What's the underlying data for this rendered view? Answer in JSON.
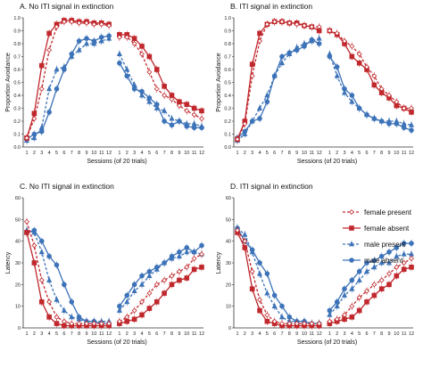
{
  "colors": {
    "female": "#c0282d",
    "male": "#3d73b8",
    "axis": "#333333"
  },
  "legend": [
    {
      "label": "female present",
      "color": "#c0282d",
      "marker": "diamond",
      "dash": true
    },
    {
      "label": "female absent",
      "color": "#c0282d",
      "marker": "square",
      "dash": false
    },
    {
      "label": "male present",
      "color": "#3d73b8",
      "marker": "triangle",
      "dash": true
    },
    {
      "label": "male absent",
      "color": "#3d73b8",
      "marker": "circle",
      "dash": false
    }
  ],
  "chart_data": [
    {
      "type": "line",
      "title": "A. No ITI signal in extinction",
      "xlabel": "Sessions (of 20 trials)",
      "ylabel": "Proportion Avoidance",
      "ylim": [
        0,
        1
      ],
      "yticks": [
        0,
        0.1,
        0.2,
        0.3,
        0.4,
        0.5,
        0.6,
        0.7,
        0.8,
        0.9,
        1
      ],
      "x_training": [
        1,
        2,
        3,
        4,
        5,
        6,
        7,
        8,
        9,
        10,
        11,
        12
      ],
      "x_extinction": [
        1,
        2,
        3,
        4,
        5,
        6,
        7,
        8,
        9,
        10,
        11,
        12
      ],
      "series": [
        {
          "name": "female present",
          "training": [
            0.07,
            0.22,
            0.45,
            0.75,
            0.93,
            0.97,
            0.97,
            0.96,
            0.96,
            0.95,
            0.95,
            0.94
          ],
          "extinction": [
            0.85,
            0.85,
            0.8,
            0.72,
            0.58,
            0.45,
            0.4,
            0.37,
            0.32,
            0.28,
            0.25,
            0.22
          ]
        },
        {
          "name": "female absent",
          "training": [
            0.07,
            0.26,
            0.63,
            0.88,
            0.95,
            0.98,
            0.98,
            0.97,
            0.97,
            0.96,
            0.96,
            0.95
          ],
          "extinction": [
            0.87,
            0.87,
            0.84,
            0.78,
            0.7,
            0.6,
            0.47,
            0.4,
            0.35,
            0.33,
            0.3,
            0.28
          ]
        },
        {
          "name": "male present",
          "training": [
            0.05,
            0.07,
            0.15,
            0.45,
            0.6,
            0.62,
            0.7,
            0.75,
            0.8,
            0.8,
            0.82,
            0.84
          ],
          "extinction": [
            0.72,
            0.6,
            0.48,
            0.4,
            0.35,
            0.3,
            0.28,
            0.22,
            0.2,
            0.18,
            0.18,
            0.16
          ]
        },
        {
          "name": "male absent",
          "training": [
            0.06,
            0.1,
            0.12,
            0.27,
            0.45,
            0.6,
            0.72,
            0.82,
            0.84,
            0.82,
            0.85,
            0.86
          ],
          "extinction": [
            0.65,
            0.55,
            0.45,
            0.43,
            0.38,
            0.33,
            0.2,
            0.17,
            0.2,
            0.16,
            0.15,
            0.15
          ]
        }
      ]
    },
    {
      "type": "line",
      "title": "B. ITI signal in extinction",
      "xlabel": "Sessions (of 20 trials)",
      "ylabel": "Proportion Avoidance",
      "ylim": [
        0,
        1
      ],
      "yticks": [
        0,
        0.1,
        0.2,
        0.3,
        0.4,
        0.5,
        0.6,
        0.7,
        0.8,
        0.9,
        1
      ],
      "x_training": [
        1,
        2,
        3,
        4,
        5,
        6,
        7,
        8,
        9,
        10,
        11,
        12
      ],
      "x_extinction": [
        1,
        2,
        3,
        4,
        5,
        6,
        7,
        8,
        9,
        10,
        11,
        12
      ],
      "series": [
        {
          "name": "female present",
          "training": [
            0.06,
            0.18,
            0.55,
            0.82,
            0.95,
            0.97,
            0.97,
            0.96,
            0.95,
            0.94,
            0.93,
            0.93
          ],
          "extinction": [
            0.9,
            0.88,
            0.82,
            0.78,
            0.72,
            0.62,
            0.55,
            0.45,
            0.4,
            0.35,
            0.3,
            0.3
          ]
        },
        {
          "name": "female absent",
          "training": [
            0.06,
            0.2,
            0.64,
            0.88,
            0.95,
            0.97,
            0.97,
            0.96,
            0.96,
            0.94,
            0.93,
            0.9
          ],
          "extinction": [
            0.9,
            0.87,
            0.8,
            0.7,
            0.65,
            0.6,
            0.48,
            0.42,
            0.38,
            0.32,
            0.3,
            0.27
          ]
        },
        {
          "name": "male present",
          "training": [
            0.05,
            0.1,
            0.2,
            0.3,
            0.4,
            0.55,
            0.65,
            0.72,
            0.77,
            0.8,
            0.82,
            0.84
          ],
          "extinction": [
            0.72,
            0.55,
            0.42,
            0.35,
            0.3,
            0.25,
            0.22,
            0.2,
            0.2,
            0.2,
            0.18,
            0.17
          ]
        },
        {
          "name": "male absent",
          "training": [
            0.07,
            0.12,
            0.2,
            0.22,
            0.35,
            0.55,
            0.7,
            0.73,
            0.75,
            0.78,
            0.83,
            0.8
          ],
          "extinction": [
            0.7,
            0.62,
            0.45,
            0.4,
            0.3,
            0.25,
            0.22,
            0.2,
            0.18,
            0.18,
            0.15,
            0.13
          ]
        }
      ]
    },
    {
      "type": "line",
      "title": "C. No ITI signal in extinction",
      "xlabel": "Sessions (of 20 trials)",
      "ylabel": "Latency",
      "ylim": [
        0,
        60
      ],
      "yticks": [
        0,
        10,
        20,
        30,
        40,
        50,
        60
      ],
      "x_training": [
        1,
        2,
        3,
        4,
        5,
        6,
        7,
        8,
        9,
        10,
        11,
        12
      ],
      "x_extinction": [
        1,
        2,
        3,
        4,
        5,
        6,
        7,
        8,
        9,
        10,
        11,
        12
      ],
      "series": [
        {
          "name": "female present",
          "training": [
            49,
            38,
            22,
            12,
            5,
            3,
            2,
            2,
            2,
            2,
            2,
            2
          ],
          "extinction": [
            3,
            5,
            8,
            12,
            16,
            20,
            22,
            24,
            26,
            28,
            32,
            34
          ]
        },
        {
          "name": "female absent",
          "training": [
            44,
            30,
            12,
            5,
            2,
            1,
            1,
            1,
            1,
            1,
            1,
            1
          ],
          "extinction": [
            2,
            3,
            4,
            6,
            9,
            12,
            16,
            20,
            22,
            23,
            27,
            28
          ]
        },
        {
          "name": "male present",
          "training": [
            45,
            44,
            35,
            22,
            13,
            8,
            5,
            4,
            3,
            3,
            3,
            3
          ],
          "extinction": [
            8,
            12,
            17,
            20,
            24,
            27,
            30,
            32,
            33,
            35,
            35,
            34
          ]
        },
        {
          "name": "male absent",
          "training": [
            44,
            45,
            40,
            33,
            29,
            20,
            12,
            5,
            3,
            3,
            2,
            2
          ],
          "extinction": [
            10,
            15,
            20,
            24,
            26,
            28,
            30,
            33,
            35,
            37,
            35,
            38
          ]
        }
      ]
    },
    {
      "type": "line",
      "title": "D. ITI signal in extinction",
      "xlabel": "Sessions (of 20 trials)",
      "ylabel": "Latency",
      "ylim": [
        0,
        60
      ],
      "yticks": [
        0,
        10,
        20,
        30,
        40,
        50,
        60
      ],
      "x_training": [
        1,
        2,
        3,
        4,
        5,
        6,
        7,
        8,
        9,
        10,
        11,
        12
      ],
      "x_extinction": [
        1,
        2,
        3,
        4,
        5,
        6,
        7,
        8,
        9,
        10,
        11,
        12
      ],
      "series": [
        {
          "name": "female present",
          "training": [
            45,
            40,
            26,
            13,
            6,
            3,
            2,
            2,
            2,
            2,
            2,
            2
          ],
          "extinction": [
            3,
            4,
            6,
            10,
            14,
            17,
            20,
            22,
            25,
            28,
            30,
            32
          ]
        },
        {
          "name": "female absent",
          "training": [
            44,
            37,
            18,
            8,
            3,
            2,
            1,
            1,
            1,
            1,
            1,
            1
          ],
          "extinction": [
            2,
            3,
            4,
            5,
            8,
            12,
            15,
            18,
            20,
            24,
            27,
            28
          ]
        },
        {
          "name": "male present",
          "training": [
            46,
            43,
            35,
            25,
            16,
            10,
            5,
            3,
            3,
            3,
            2,
            2
          ],
          "extinction": [
            6,
            10,
            15,
            18,
            22,
            26,
            28,
            30,
            30,
            33,
            34,
            34
          ]
        },
        {
          "name": "male absent",
          "training": [
            46,
            40,
            36,
            30,
            25,
            15,
            10,
            5,
            3,
            3,
            2,
            2
          ],
          "extinction": [
            8,
            12,
            18,
            22,
            26,
            30,
            31,
            33,
            35,
            37,
            39,
            39
          ]
        }
      ]
    }
  ]
}
